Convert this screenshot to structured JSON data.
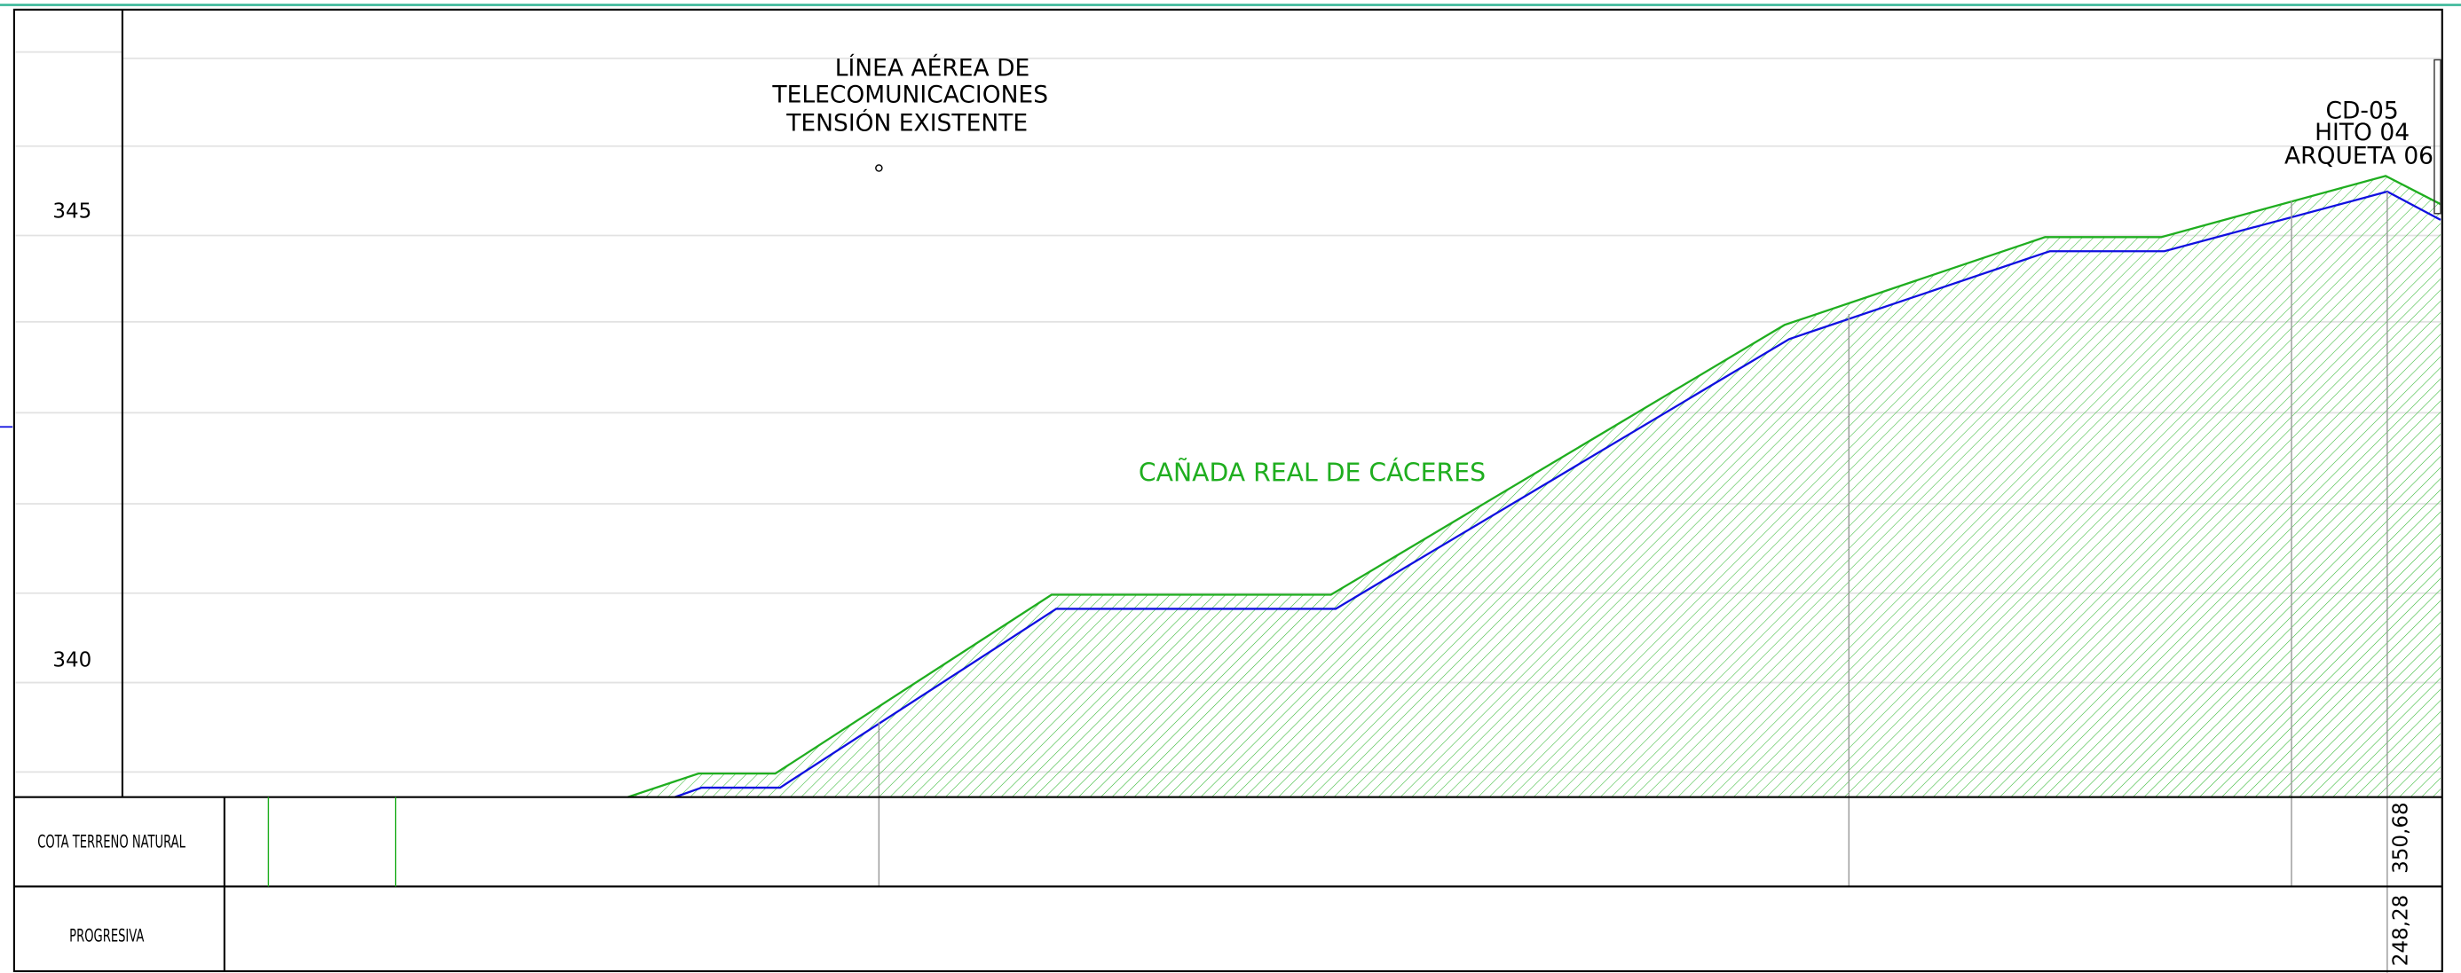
{
  "axis": {
    "labels": [
      "345",
      "340"
    ]
  },
  "annotations": {
    "line": [
      "LÍNEA AÉREA DE",
      "TELECOMUNICACIONES",
      "TENSIÓN EXISTENTE"
    ],
    "marker": [
      "CD-05",
      "HITO 04",
      "ARQUETA 06"
    ],
    "area": "CAÑADA REAL DE CÁCERES"
  },
  "table": {
    "rows": [
      {
        "header": "COTA TERRENO NATURAL",
        "value": "350,68"
      },
      {
        "header": "PROGRESIVA",
        "value": "248,28"
      }
    ]
  }
}
